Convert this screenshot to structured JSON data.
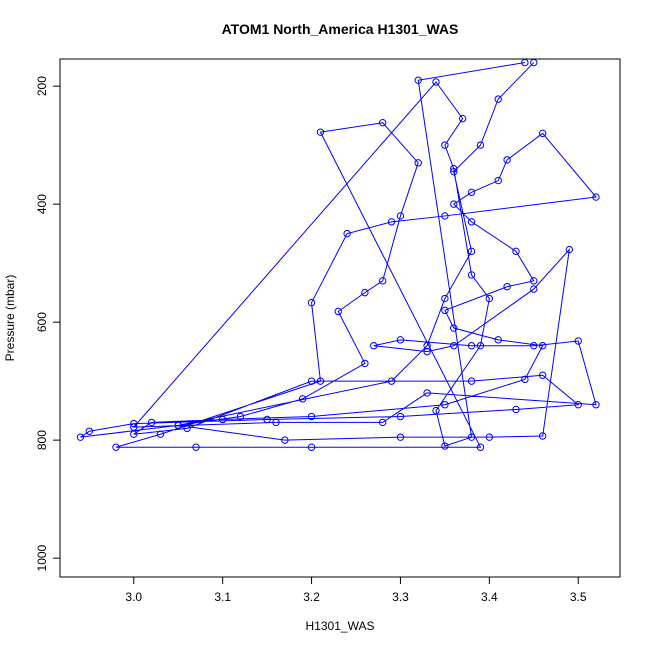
{
  "chart_data": {
    "type": "line",
    "title": "ATOM1 North_America H1301_WAS",
    "x_label": "H1301_WAS",
    "y_label": "Pressure (mbar)",
    "color": "#0000ff",
    "xlim": [
      2.917,
      3.547
    ],
    "xticks": [
      {
        "value": 3,
        "label": "3.0"
      },
      3.1,
      3.2,
      3.3,
      3.4,
      3.5
    ],
    "ylim": [
      1032,
      154
    ],
    "yticks": [
      200,
      400,
      600,
      800,
      1000
    ],
    "x": [
      3.45,
      3.41,
      3.39,
      3.36,
      3.38,
      3.35,
      3.33,
      3.29,
      3.05,
      2.94,
      2.95,
      3.0,
      3.15,
      3.3,
      3.43,
      3.5,
      3.46,
      3.38,
      3.2,
      3.06,
      3.0,
      3.02,
      3.1,
      3.2,
      3.35,
      3.44,
      3.46,
      3.41,
      3.36,
      3.35,
      3.42,
      3.45,
      3.43,
      3.38,
      3.36,
      3.38,
      3.41,
      3.42,
      3.46,
      3.52,
      3.35,
      3.29,
      3.24,
      3.2,
      3.21,
      3.03,
      2.98,
      3.07,
      3.2,
      3.39,
      3.21,
      3.28,
      3.32,
      3.3,
      3.28,
      3.26,
      3.23,
      3.26,
      3.19,
      3.12,
      3.05,
      3.17,
      3.3,
      3.4,
      3.46,
      3.49,
      3.45,
      3.36,
      3.33,
      3.27,
      3.3,
      3.38,
      3.45,
      3.5,
      3.52,
      3.33,
      3.28,
      3.16,
      3.0,
      3.34,
      3.37,
      3.35,
      3.36,
      3.38,
      3.4,
      3.39,
      3.34,
      3.35,
      3.38,
      3.32,
      3.44
    ],
    "values": [
      160,
      222,
      300,
      345,
      480,
      560,
      640,
      700,
      775,
      795,
      785,
      772,
      765,
      760,
      748,
      740,
      690,
      700,
      700,
      780,
      790,
      770,
      765,
      760,
      740,
      697,
      640,
      630,
      610,
      580,
      540,
      530,
      480,
      430,
      400,
      380,
      360,
      325,
      280,
      388,
      420,
      430,
      450,
      567,
      700,
      790,
      812,
      812,
      812,
      812,
      278,
      262,
      330,
      420,
      530,
      550,
      582,
      670,
      730,
      760,
      775,
      800,
      795,
      795,
      793,
      477,
      544,
      640,
      650,
      640,
      630,
      640,
      640,
      632,
      740,
      720,
      770,
      770,
      778,
      193,
      255,
      300,
      340,
      520,
      560,
      640,
      750,
      810,
      795,
      190,
      160
    ]
  }
}
